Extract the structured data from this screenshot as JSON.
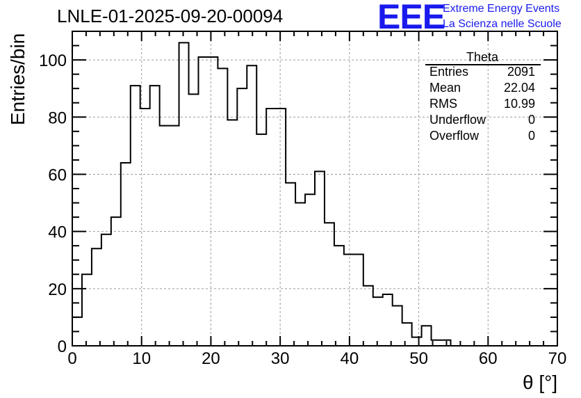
{
  "chart_data": {
    "type": "histogram",
    "title": "LNLE-01-2025-09-20-00094",
    "xlabel": "θ [°]",
    "ylabel": "Entries/bin",
    "xlim": [
      0,
      70
    ],
    "ylim": [
      0,
      110
    ],
    "x_ticks": [
      0,
      10,
      20,
      30,
      40,
      50,
      60,
      70
    ],
    "y_ticks": [
      0,
      20,
      40,
      60,
      80,
      100
    ],
    "grid": true,
    "bin_width": 1.4,
    "bin_edges_start": 0,
    "values": [
      10,
      25,
      34,
      39,
      45,
      64,
      91,
      83,
      91,
      77,
      77,
      106,
      88,
      101,
      101,
      97,
      79,
      90,
      98,
      74,
      83,
      83,
      57,
      50,
      53,
      61,
      43,
      35,
      32,
      32,
      21,
      17,
      18,
      14,
      8,
      3,
      7,
      2,
      2,
      0
    ],
    "line_color": "#000000"
  },
  "stats": {
    "title": "Theta",
    "rows": [
      {
        "label": "Entries",
        "value": "2091"
      },
      {
        "label": "Mean",
        "value": "22.04"
      },
      {
        "label": "RMS",
        "value": "10.99"
      },
      {
        "label": "Underflow",
        "value": "0"
      },
      {
        "label": "Overflow",
        "value": "0"
      }
    ]
  },
  "logo": {
    "mark": "EEE",
    "line1": "Extreme Energy Events",
    "line2": "La Scienza nelle Scuole",
    "color": "#1a1aee"
  }
}
